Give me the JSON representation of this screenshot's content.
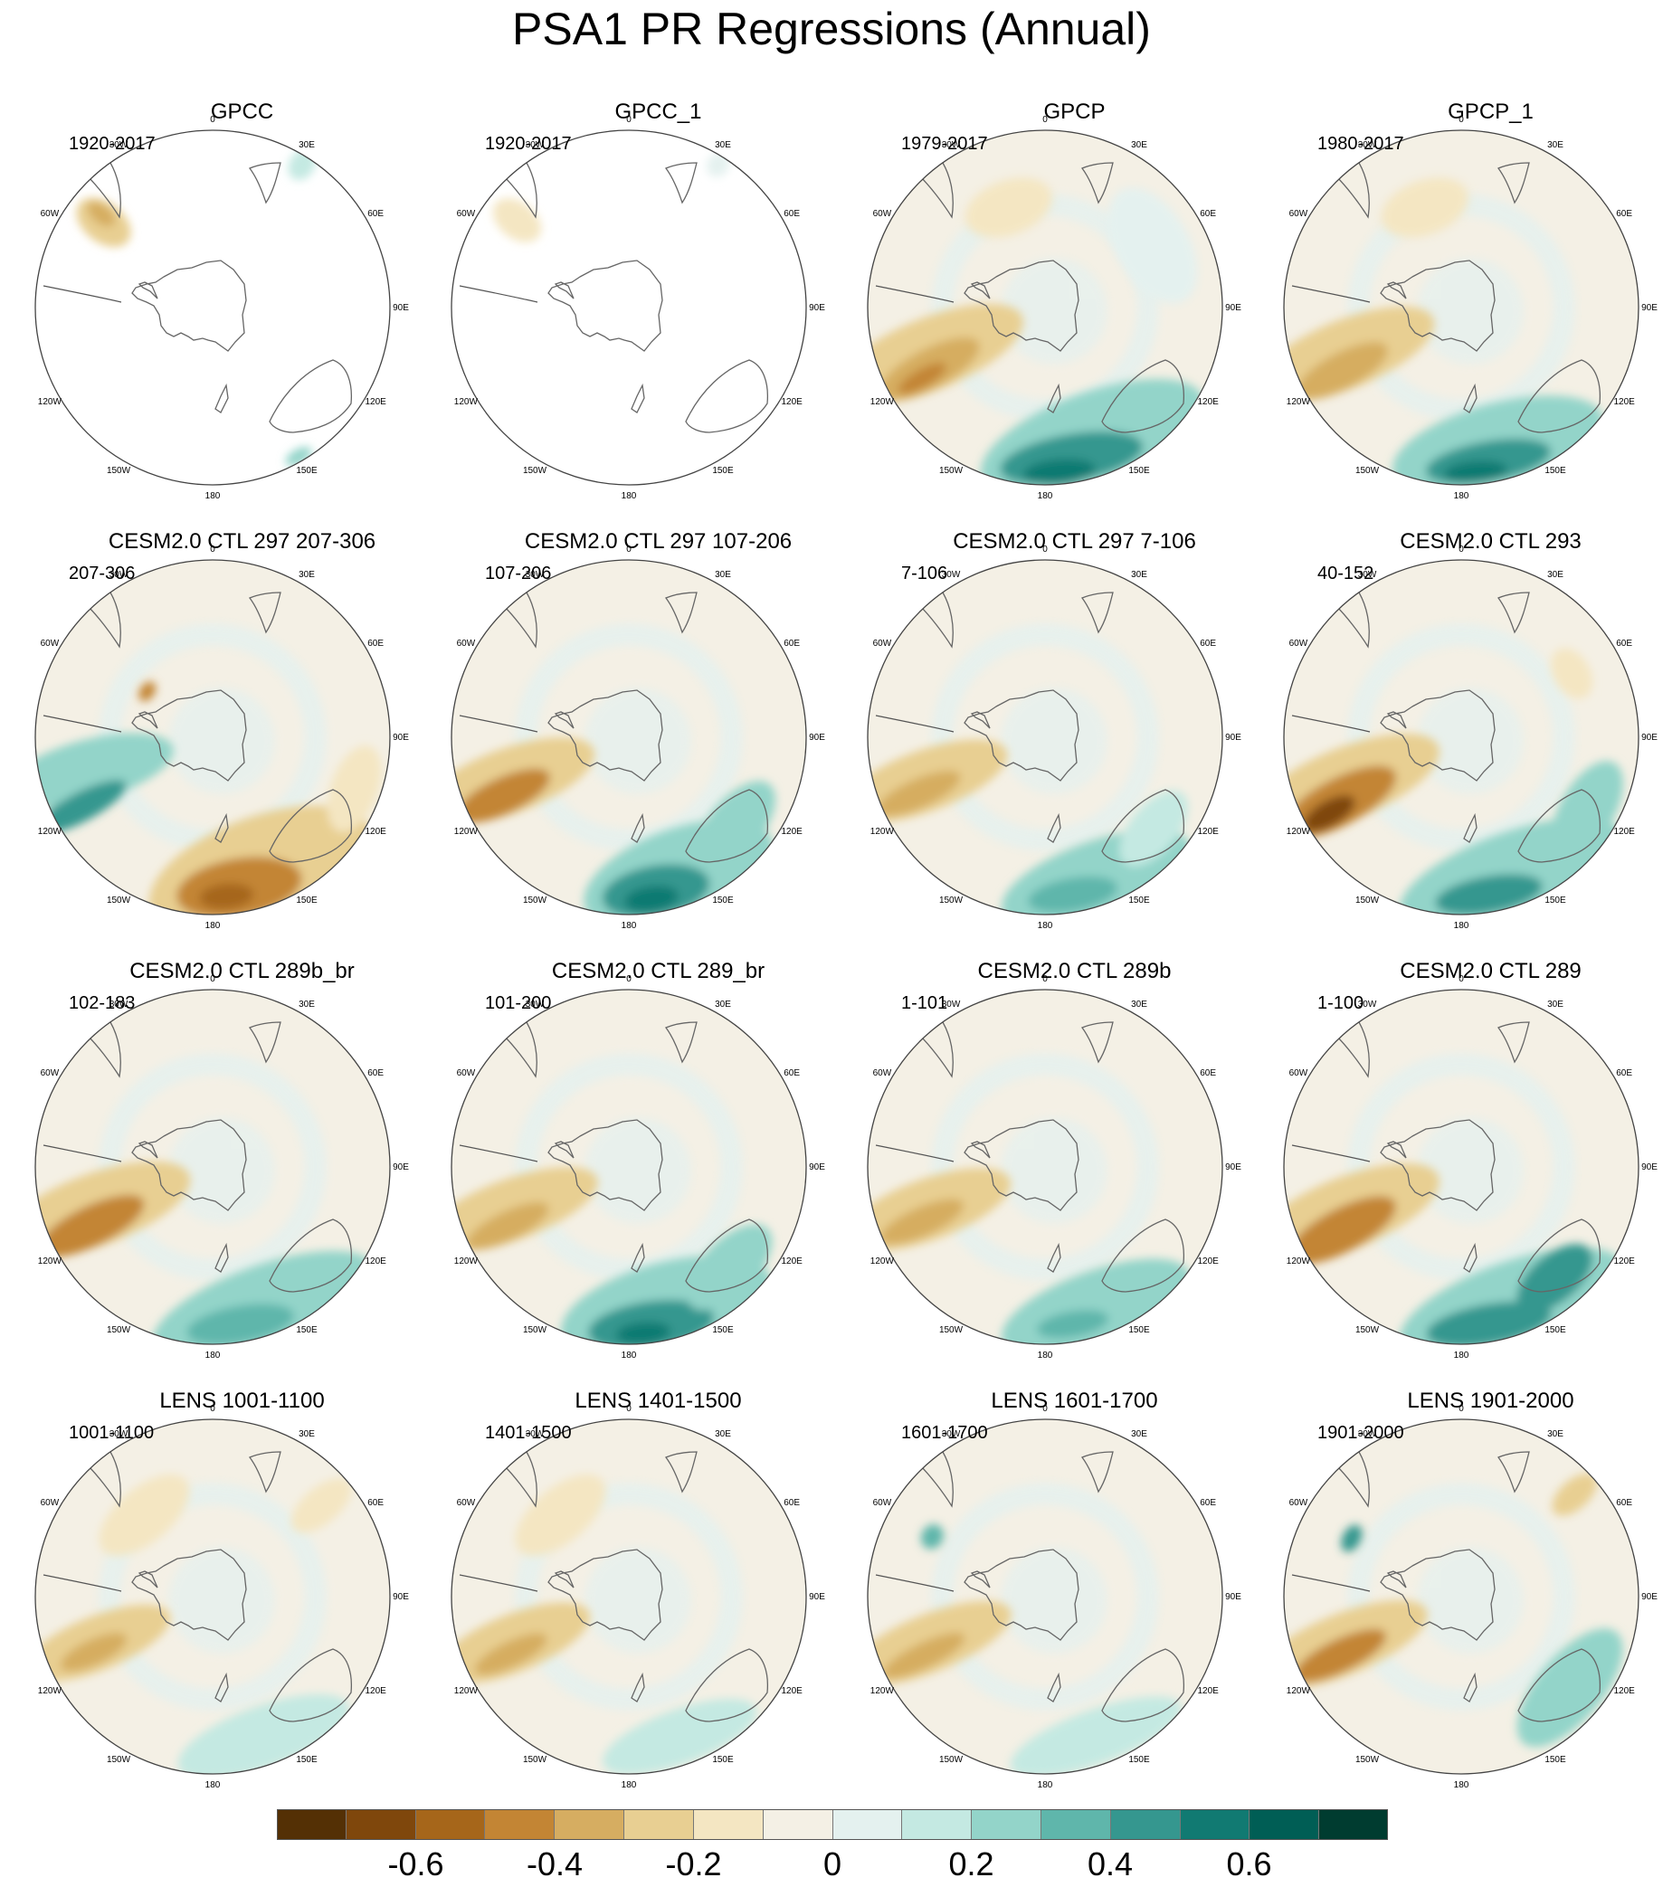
{
  "title": "PSA1 PR Regressions (Annual)",
  "map_labels": [
    "0",
    "30E",
    "60E",
    "90E",
    "120E",
    "150E",
    "180",
    "150W",
    "120W",
    "90W",
    "60W",
    "30W"
  ],
  "panels": [
    {
      "title": "GPCC",
      "years": "1920-2017",
      "coverage": "land"
    },
    {
      "title": "GPCC_1",
      "years": "1920-2017",
      "coverage": "land"
    },
    {
      "title": "GPCP",
      "years": "1979-2017",
      "coverage": "full"
    },
    {
      "title": "GPCP_1",
      "years": "1980-2017",
      "coverage": "full"
    },
    {
      "title": "CESM2.0 CTL 297 207-306",
      "years": "207-306",
      "coverage": "full"
    },
    {
      "title": "CESM2.0 CTL 297 107-206",
      "years": "107-206",
      "coverage": "full"
    },
    {
      "title": "CESM2.0 CTL 297 7-106",
      "years": "7-106",
      "coverage": "full"
    },
    {
      "title": "CESM2.0 CTL 293",
      "years": "40-152",
      "coverage": "full"
    },
    {
      "title": "CESM2.0 CTL 289b_br",
      "years": "102-183",
      "coverage": "full"
    },
    {
      "title": "CESM2.0 CTL 289_br",
      "years": "101-200",
      "coverage": "full"
    },
    {
      "title": "CESM2.0 CTL 289b",
      "years": "1-101",
      "coverage": "full"
    },
    {
      "title": "CESM2.0 CTL 289",
      "years": "1-100",
      "coverage": "full"
    },
    {
      "title": "LENS 1001-1100",
      "years": "1001-1100",
      "coverage": "full"
    },
    {
      "title": "LENS 1401-1500",
      "years": "1401-1500",
      "coverage": "full"
    },
    {
      "title": "LENS 1601-1700",
      "years": "1601-1700",
      "coverage": "full"
    },
    {
      "title": "LENS 1901-2000",
      "years": "1901-2000",
      "coverage": "full"
    }
  ],
  "colorbar": {
    "colors": [
      "#543005",
      "#7f470c",
      "#a6661a",
      "#c38534",
      "#d6ad61",
      "#e8cf92",
      "#f4e6c2",
      "#f4f0e5",
      "#e4f1ef",
      "#c4e9e2",
      "#93d4c9",
      "#5fb6ab",
      "#35978f",
      "#117a72",
      "#005e55",
      "#003c30"
    ],
    "tick_labels": [
      "-0.6",
      "-0.4",
      "-0.2",
      "0",
      "0.2",
      "0.4",
      "0.6"
    ],
    "tick_boundaries": [
      2,
      4,
      6,
      8,
      10,
      12,
      14
    ]
  }
}
